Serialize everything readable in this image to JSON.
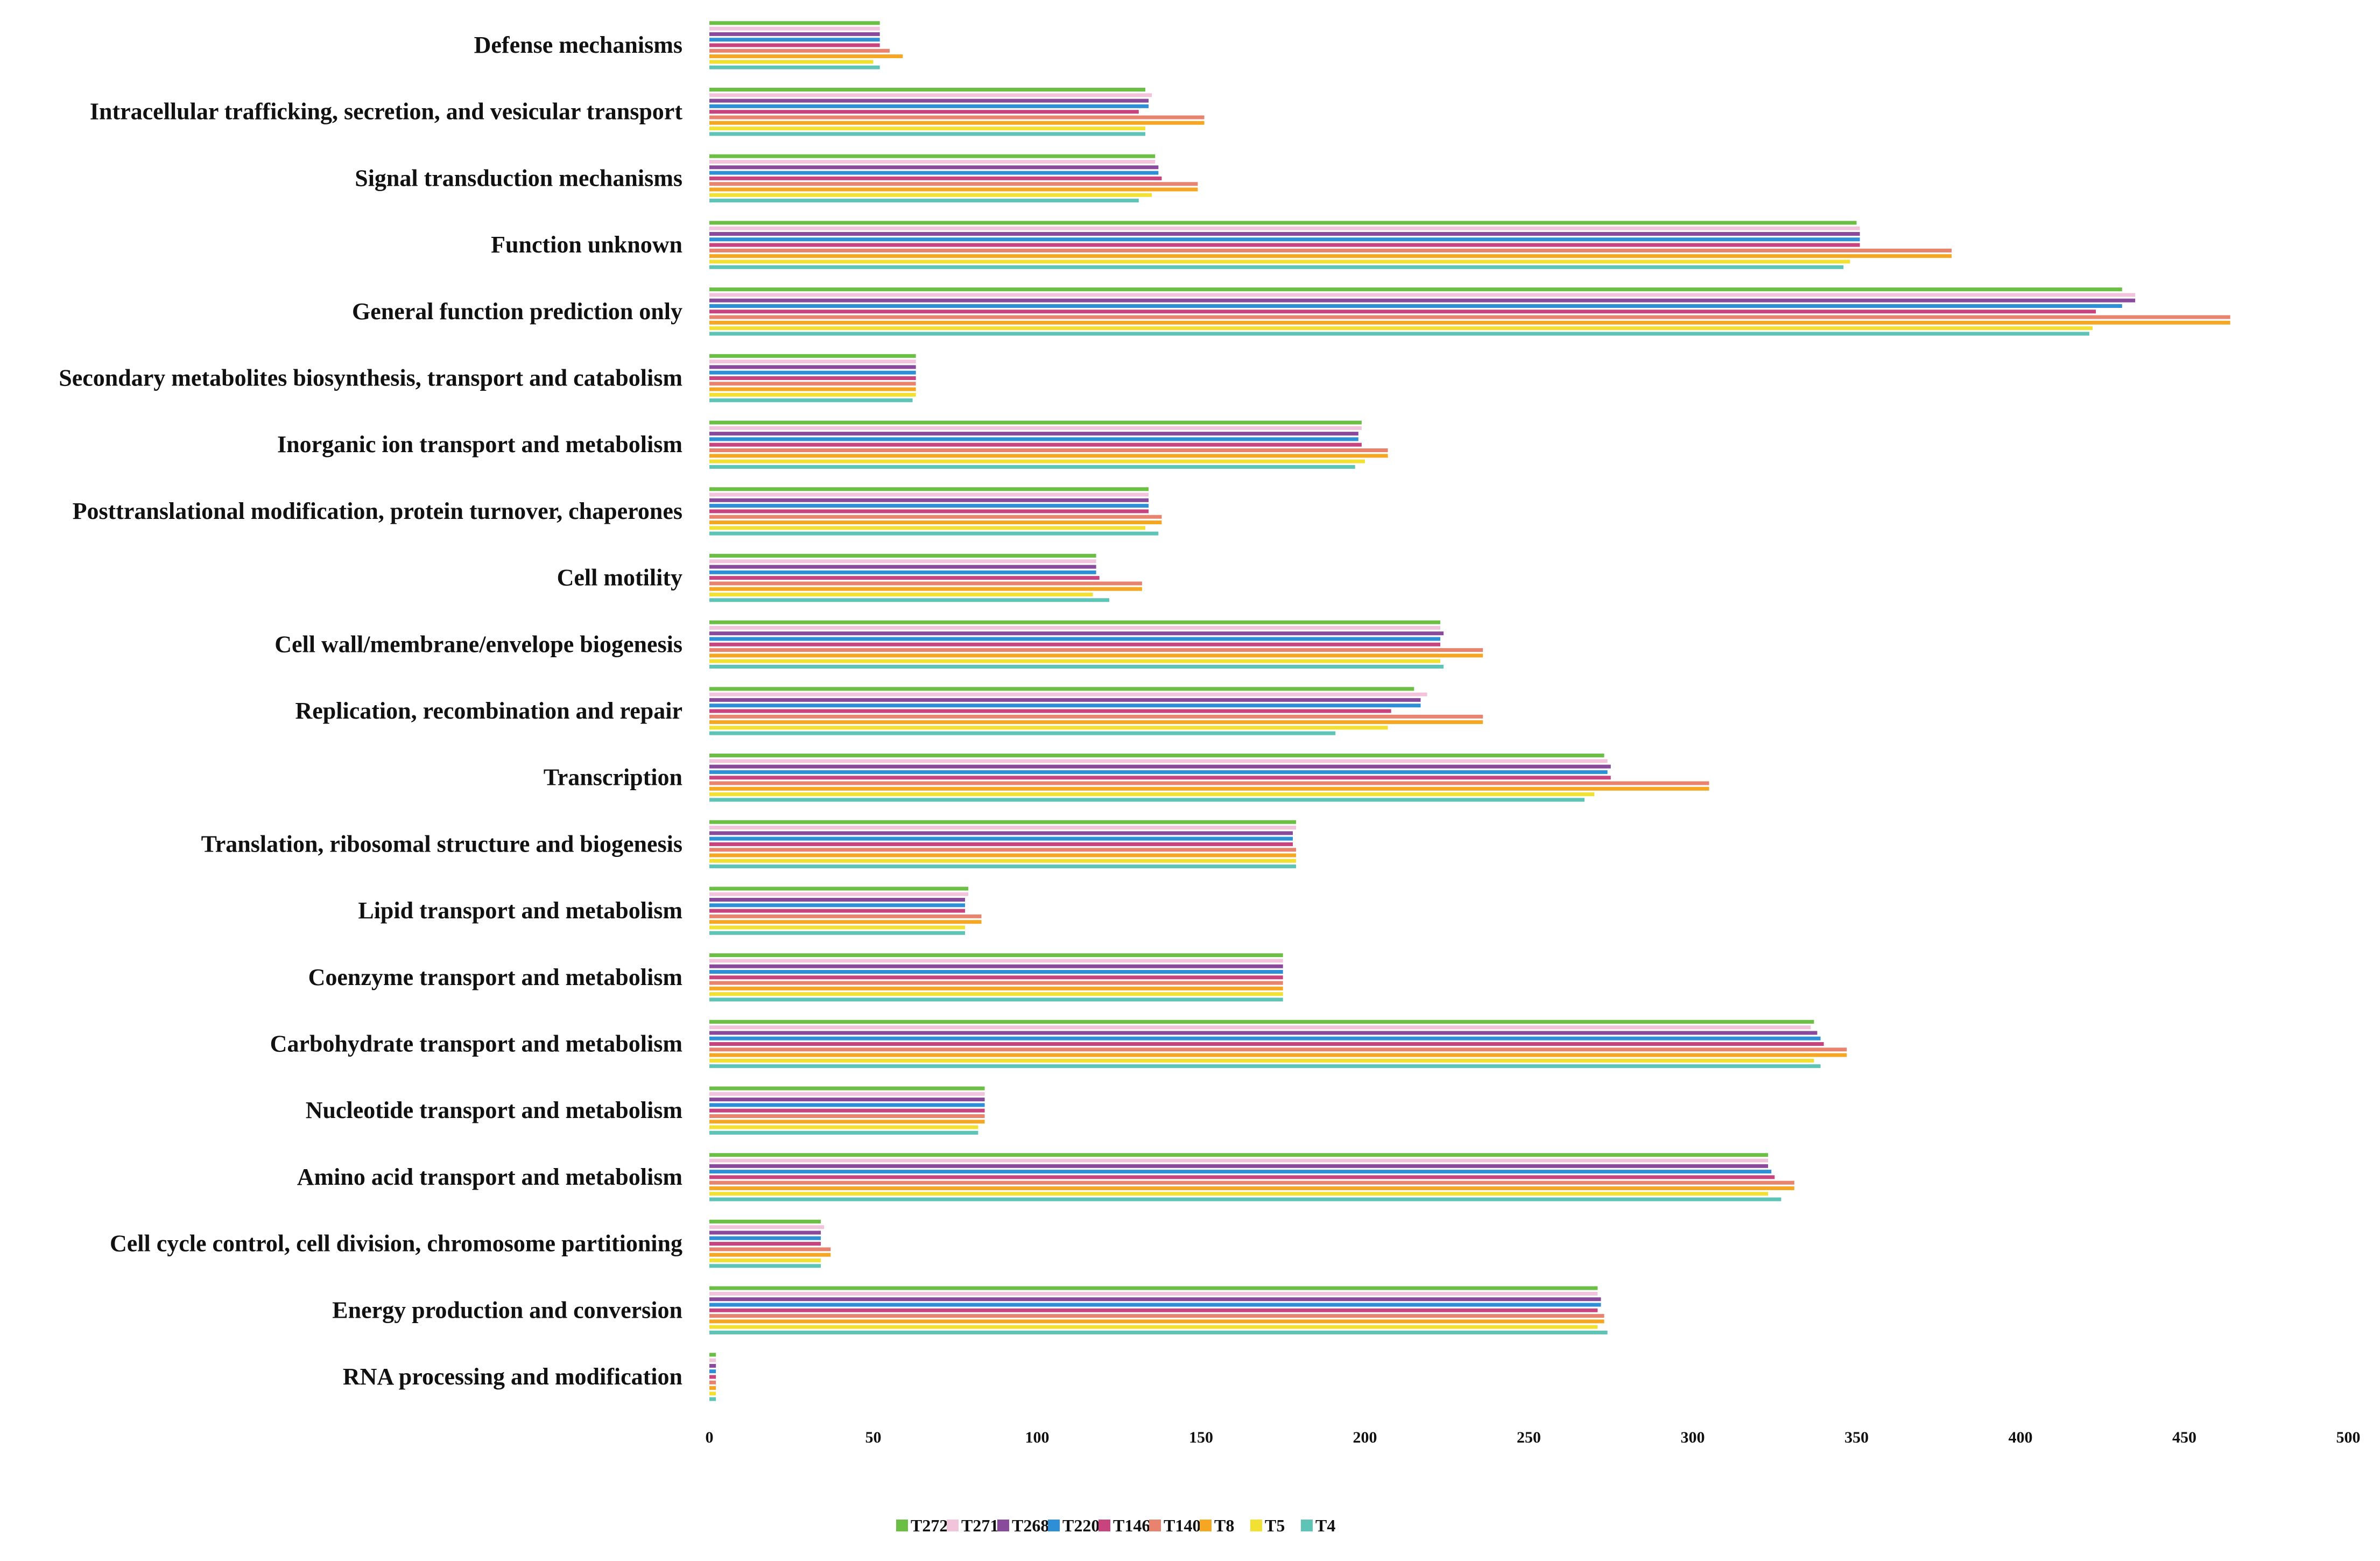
{
  "chart_data": {
    "type": "bar",
    "orientation": "horizontal",
    "title": "",
    "xlabel": "",
    "ylabel": "",
    "xlim": [
      0,
      500
    ],
    "xticks": [
      0,
      50,
      100,
      150,
      200,
      250,
      300,
      350,
      400,
      450,
      500
    ],
    "grid": false,
    "legend_position": "bottom-center",
    "categories": [
      "Defense mechanisms",
      "Intracellular trafficking, secretion, and vesicular transport",
      "Signal transduction mechanisms",
      "Function unknown",
      "General function prediction only",
      "Secondary metabolites biosynthesis, transport and catabolism",
      "Inorganic ion transport and metabolism",
      "Posttranslational modification, protein turnover, chaperones",
      "Cell motility",
      "Cell wall/membrane/envelope biogenesis",
      "Replication, recombination and repair",
      "Transcription",
      "Translation, ribosomal structure and biogenesis",
      "Lipid transport and metabolism",
      "Coenzyme transport and metabolism",
      "Carbohydrate transport and metabolism",
      "Nucleotide transport and metabolism",
      "Amino acid transport and metabolism",
      "Cell cycle control, cell division, chromosome partitioning",
      "Energy production and conversion",
      "RNA processing and modification"
    ],
    "series": [
      {
        "name": "T272",
        "color": "#6bbf45",
        "values": [
          52,
          133,
          136,
          350,
          431,
          63,
          199,
          134,
          118,
          223,
          215,
          273,
          179,
          79,
          175,
          337,
          84,
          323,
          34,
          271,
          2
        ]
      },
      {
        "name": "T271",
        "color": "#f2c4dc",
        "values": [
          52,
          135,
          136,
          351,
          435,
          63,
          199,
          134,
          118,
          223,
          219,
          274,
          179,
          79,
          175,
          336,
          84,
          323,
          35,
          271,
          2
        ]
      },
      {
        "name": "T268",
        "color": "#8a4a9c",
        "values": [
          52,
          134,
          137,
          351,
          435,
          63,
          198,
          134,
          118,
          224,
          217,
          275,
          178,
          78,
          175,
          338,
          84,
          323,
          34,
          272,
          2
        ]
      },
      {
        "name": "T220",
        "color": "#2f8fd6",
        "values": [
          52,
          134,
          137,
          351,
          431,
          63,
          198,
          134,
          118,
          223,
          217,
          274,
          178,
          78,
          175,
          339,
          84,
          324,
          34,
          272,
          2
        ]
      },
      {
        "name": "T146",
        "color": "#c8447e",
        "values": [
          52,
          131,
          138,
          351,
          423,
          63,
          199,
          134,
          119,
          223,
          208,
          275,
          178,
          78,
          175,
          340,
          84,
          325,
          34,
          271,
          2
        ]
      },
      {
        "name": "T140",
        "color": "#e8836d",
        "values": [
          55,
          151,
          149,
          379,
          464,
          63,
          207,
          138,
          132,
          236,
          236,
          305,
          179,
          83,
          175,
          347,
          84,
          331,
          37,
          273,
          2
        ]
      },
      {
        "name": "T8",
        "color": "#f5a623",
        "values": [
          59,
          151,
          149,
          379,
          464,
          63,
          207,
          138,
          132,
          236,
          236,
          305,
          179,
          83,
          175,
          347,
          84,
          331,
          37,
          273,
          2
        ]
      },
      {
        "name": "T5",
        "color": "#f2e032",
        "values": [
          50,
          133,
          135,
          348,
          422,
          63,
          200,
          133,
          117,
          223,
          207,
          270,
          179,
          78,
          175,
          337,
          82,
          323,
          34,
          271,
          2
        ]
      },
      {
        "name": "T4",
        "color": "#5ec4b6",
        "values": [
          52,
          133,
          131,
          346,
          421,
          62,
          197,
          137,
          122,
          224,
          191,
          267,
          179,
          78,
          175,
          339,
          82,
          327,
          34,
          274,
          2
        ]
      }
    ]
  }
}
